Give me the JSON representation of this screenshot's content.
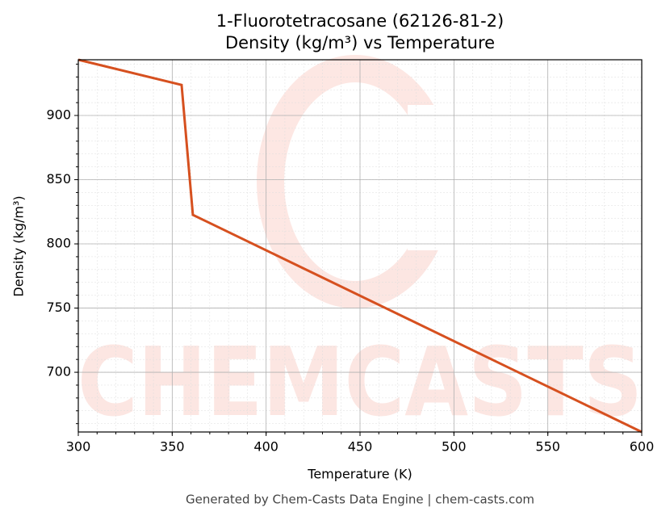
{
  "chart_data": {
    "type": "line",
    "title": "1-Fluorotetracosane (62126-81-2)",
    "subtitle": "Density (kg/m³) vs Temperature",
    "x_label": "Temperature (K)",
    "y_label": "Density (kg/m³)",
    "watermark": "CHEMCASTS",
    "footer": "Generated by Chem-Casts Data Engine | chem-casts.com",
    "series": [
      {
        "name": "Density",
        "color": "#d6501f",
        "x": [
          300,
          355,
          361,
          600
        ],
        "values": [
          943.4,
          923.8,
          822.6,
          653.5
        ]
      }
    ],
    "xlim": [
      300,
      600
    ],
    "xticks": [
      300,
      350,
      400,
      450,
      500,
      550,
      600
    ],
    "ylim": [
      653.5,
      943.4
    ],
    "yticks": [
      700,
      750,
      800,
      850,
      900
    ],
    "grid": true
  }
}
